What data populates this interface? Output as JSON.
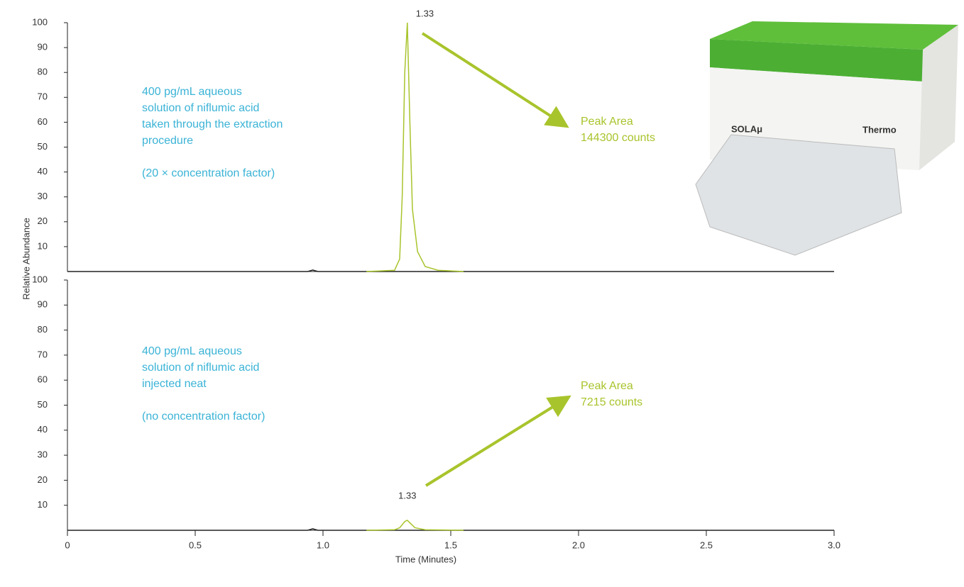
{
  "chart_data": [
    {
      "type": "line",
      "ylabel": "Relative Abundance",
      "xlim": [
        0,
        3
      ],
      "ylim": [
        0,
        100
      ],
      "yticks": [
        10,
        20,
        30,
        40,
        50,
        60,
        70,
        80,
        90,
        100
      ],
      "series": [
        {
          "color": "#222222",
          "x": [
            0,
            0.94,
            0.96,
            0.98,
            1.17,
            1.55,
            3.0
          ],
          "values": [
            0,
            0,
            0.6,
            0,
            0,
            0,
            0
          ]
        },
        {
          "color": "#a8c42c",
          "x": [
            1.17,
            1.28,
            1.3,
            1.31,
            1.32,
            1.33,
            1.34,
            1.35,
            1.37,
            1.4,
            1.45,
            1.55
          ],
          "values": [
            0,
            0.5,
            5,
            30,
            80,
            100,
            60,
            25,
            8,
            2,
            0.5,
            0
          ]
        }
      ],
      "peak_label": "1.33",
      "description": [
        "400 pg/mL aqueous",
        "solution of niflumic acid",
        "taken through the extraction",
        "procedure"
      ],
      "note": "(20 × concentration factor)",
      "peak_area": [
        "Peak Area",
        "144300 counts"
      ],
      "image_labels": [
        "SOLAμ",
        "Thermo"
      ]
    },
    {
      "type": "line",
      "xlabel": "Time (Minutes)",
      "xlim": [
        0,
        3
      ],
      "ylim": [
        0,
        100
      ],
      "yticks": [
        10,
        20,
        30,
        40,
        50,
        60,
        70,
        80,
        90,
        100
      ],
      "xticks": [
        0,
        0.5,
        {
          "value": 1,
          "label": "1.0"
        },
        1.5,
        {
          "value": 2,
          "label": "2.0"
        },
        2.5,
        {
          "value": 3,
          "label": "3.0"
        }
      ],
      "series": [
        {
          "color": "#222222",
          "x": [
            0,
            0.94,
            0.96,
            0.98,
            1.17,
            1.55,
            3.0
          ],
          "values": [
            0,
            0,
            0.6,
            0,
            0,
            0,
            0
          ]
        },
        {
          "color": "#a8c42c",
          "x": [
            1.17,
            1.28,
            1.3,
            1.32,
            1.33,
            1.34,
            1.36,
            1.4,
            1.55
          ],
          "values": [
            0,
            0.2,
            1,
            3.5,
            4,
            3,
            1,
            0.2,
            0
          ]
        }
      ],
      "peak_label": "1.33",
      "description": [
        "400 pg/mL aqueous",
        "solution of niflumic acid",
        "injected neat"
      ],
      "note": "(no concentration factor)",
      "peak_area": [
        "Peak Area",
        "7215 counts"
      ]
    }
  ]
}
